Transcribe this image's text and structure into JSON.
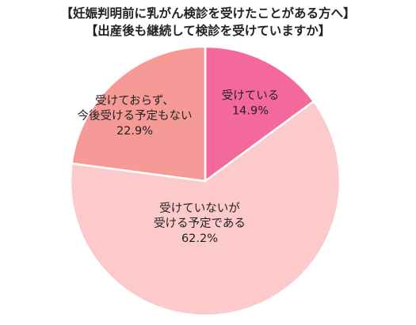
{
  "chart_data": {
    "type": "pie",
    "title": "【妊娠判明前に乳がん検診を受けたことがある方へ】",
    "subtitle": "【出産後も継続して検診を受けていますか】",
    "slices": [
      {
        "label_lines": [
          "受けている"
        ],
        "value": 14.9,
        "value_label": "14.9%",
        "color": "#f4699c"
      },
      {
        "label_lines": [
          "受けていないが",
          "受ける予定である"
        ],
        "value": 62.2,
        "value_label": "62.2%",
        "color": "#fccaca"
      },
      {
        "label_lines": [
          "受けておらず、",
          "今後受ける予定もない"
        ],
        "value": 22.9,
        "value_label": "22.9%",
        "color": "#f59a96"
      }
    ],
    "start": "12 o'clock",
    "direction": "clockwise",
    "legend": "none (labels inside slices)"
  }
}
